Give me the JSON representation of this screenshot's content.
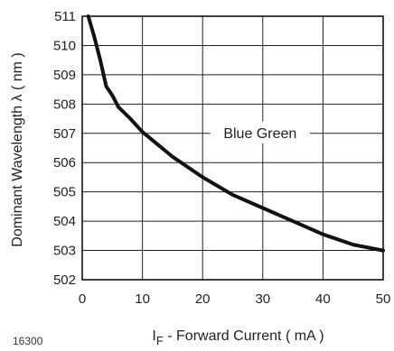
{
  "figure_id": "16300",
  "chart_data": {
    "type": "line",
    "title": "",
    "xlabel_prefix": "I",
    "xlabel_subscript": "F",
    "xlabel_rest": " - Forward Current ( mA )",
    "ylabel": "Dominant Wavelength  λ  ( nm )",
    "xlim": [
      0,
      50
    ],
    "ylim": [
      502,
      511
    ],
    "x_ticks": [
      0,
      10,
      20,
      30,
      40,
      50
    ],
    "y_ticks": [
      502,
      503,
      504,
      505,
      506,
      507,
      508,
      509,
      510,
      511
    ],
    "grid": true,
    "series": [
      {
        "name": "Blue Green",
        "x": [
          1,
          2,
          3,
          4,
          5,
          6,
          8,
          10,
          15,
          20,
          25,
          30,
          35,
          40,
          45,
          50
        ],
        "y": [
          511.0,
          510.3,
          509.5,
          508.6,
          508.3,
          507.9,
          507.5,
          507.05,
          506.2,
          505.5,
          504.9,
          504.45,
          504.0,
          503.55,
          503.2,
          503.0
        ],
        "color": "#111111"
      }
    ],
    "annotations": [
      {
        "text": "Blue Green",
        "x": 30,
        "y": 507
      }
    ]
  }
}
